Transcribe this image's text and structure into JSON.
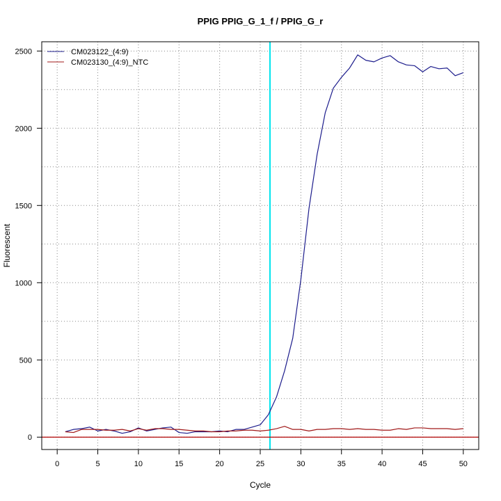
{
  "chart_data": {
    "type": "line",
    "title": "PPIG  PPIG_G_1_f / PPIG_G_r",
    "xlabel": "Cycle",
    "ylabel": "Fluorescent",
    "xlim": [
      -1.9,
      51.9
    ],
    "ylim": [
      -80,
      2560
    ],
    "xticks": [
      0,
      5,
      10,
      15,
      20,
      25,
      30,
      35,
      40,
      45,
      50
    ],
    "yticks": [
      0,
      500,
      1000,
      1500,
      2000,
      2500
    ],
    "grid": true,
    "legend_position": "top-left",
    "threshold_x": 26.2,
    "baseline_y": 0,
    "colors": {
      "series_1": "#1c1c8c",
      "series_2": "#a01818",
      "threshold": "#00e5ee",
      "baseline": "#b00000",
      "grid": "#888888"
    },
    "x": [
      1,
      2,
      3,
      4,
      5,
      6,
      7,
      8,
      9,
      10,
      11,
      12,
      13,
      14,
      15,
      16,
      17,
      18,
      19,
      20,
      21,
      22,
      23,
      24,
      25,
      26,
      27,
      28,
      29,
      30,
      31,
      32,
      33,
      34,
      35,
      36,
      37,
      38,
      39,
      40,
      41,
      42,
      43,
      44,
      45,
      46,
      47,
      48,
      49,
      50
    ],
    "series": [
      {
        "name": "CM023122_(4:9)",
        "values": [
          35,
          50,
          55,
          65,
          40,
          50,
          40,
          25,
          35,
          60,
          40,
          50,
          60,
          65,
          30,
          25,
          35,
          35,
          35,
          40,
          35,
          50,
          50,
          65,
          80,
          145,
          260,
          430,
          640,
          1020,
          1480,
          1830,
          2100,
          2260,
          2330,
          2390,
          2475,
          2440,
          2430,
          2455,
          2470,
          2430,
          2410,
          2405,
          2365,
          2400,
          2385,
          2390,
          2340,
          2360
        ]
      },
      {
        "name": "CM023130_(4:9)_NTC",
        "values": [
          35,
          30,
          50,
          50,
          50,
          45,
          45,
          50,
          40,
          55,
          45,
          55,
          55,
          50,
          50,
          45,
          40,
          40,
          35,
          35,
          40,
          40,
          45,
          45,
          40,
          45,
          55,
          70,
          50,
          50,
          40,
          50,
          50,
          55,
          55,
          50,
          55,
          50,
          50,
          45,
          45,
          55,
          50,
          60,
          60,
          55,
          55,
          55,
          50,
          55
        ]
      }
    ]
  }
}
